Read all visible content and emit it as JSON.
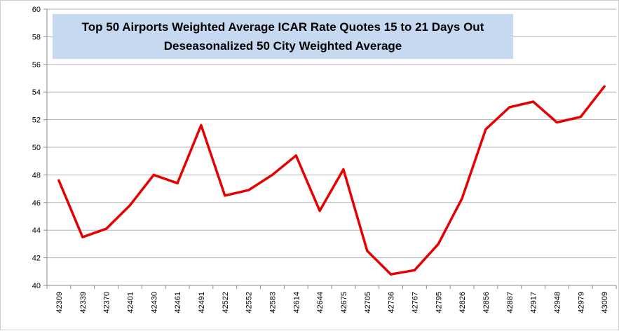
{
  "chart_data": {
    "type": "line",
    "title": "Top 50 Airports  Weighted Average ICAR Rate Quotes  15 to 21 Days Out",
    "subtitle": "Deseasonalized  50 City Weighted Average",
    "xlabel": "",
    "ylabel": "",
    "categories": [
      "42309",
      "42339",
      "42370",
      "42401",
      "42430",
      "42461",
      "42491",
      "42522",
      "42552",
      "42583",
      "42614",
      "42644",
      "42675",
      "42705",
      "42736",
      "42767",
      "42795",
      "42826",
      "42856",
      "42887",
      "42917",
      "42948",
      "42979",
      "43009"
    ],
    "series": [
      {
        "values": [
          47.6,
          43.5,
          44.1,
          45.8,
          48.0,
          47.4,
          51.6,
          46.5,
          46.9,
          48.0,
          49.4,
          45.4,
          48.4,
          42.5,
          40.8,
          41.1,
          43.0,
          46.3,
          51.3,
          52.9,
          53.3,
          51.8,
          52.2,
          54.4
        ]
      }
    ],
    "ylim": [
      40,
      60
    ],
    "yticks": [
      40,
      42,
      44,
      46,
      48,
      50,
      52,
      54,
      56,
      58,
      60
    ],
    "grid": true,
    "legend": "none",
    "line_color": "#e60000",
    "grid_color": "#b3b3b3",
    "title_box_color": "#c6d9f1"
  }
}
